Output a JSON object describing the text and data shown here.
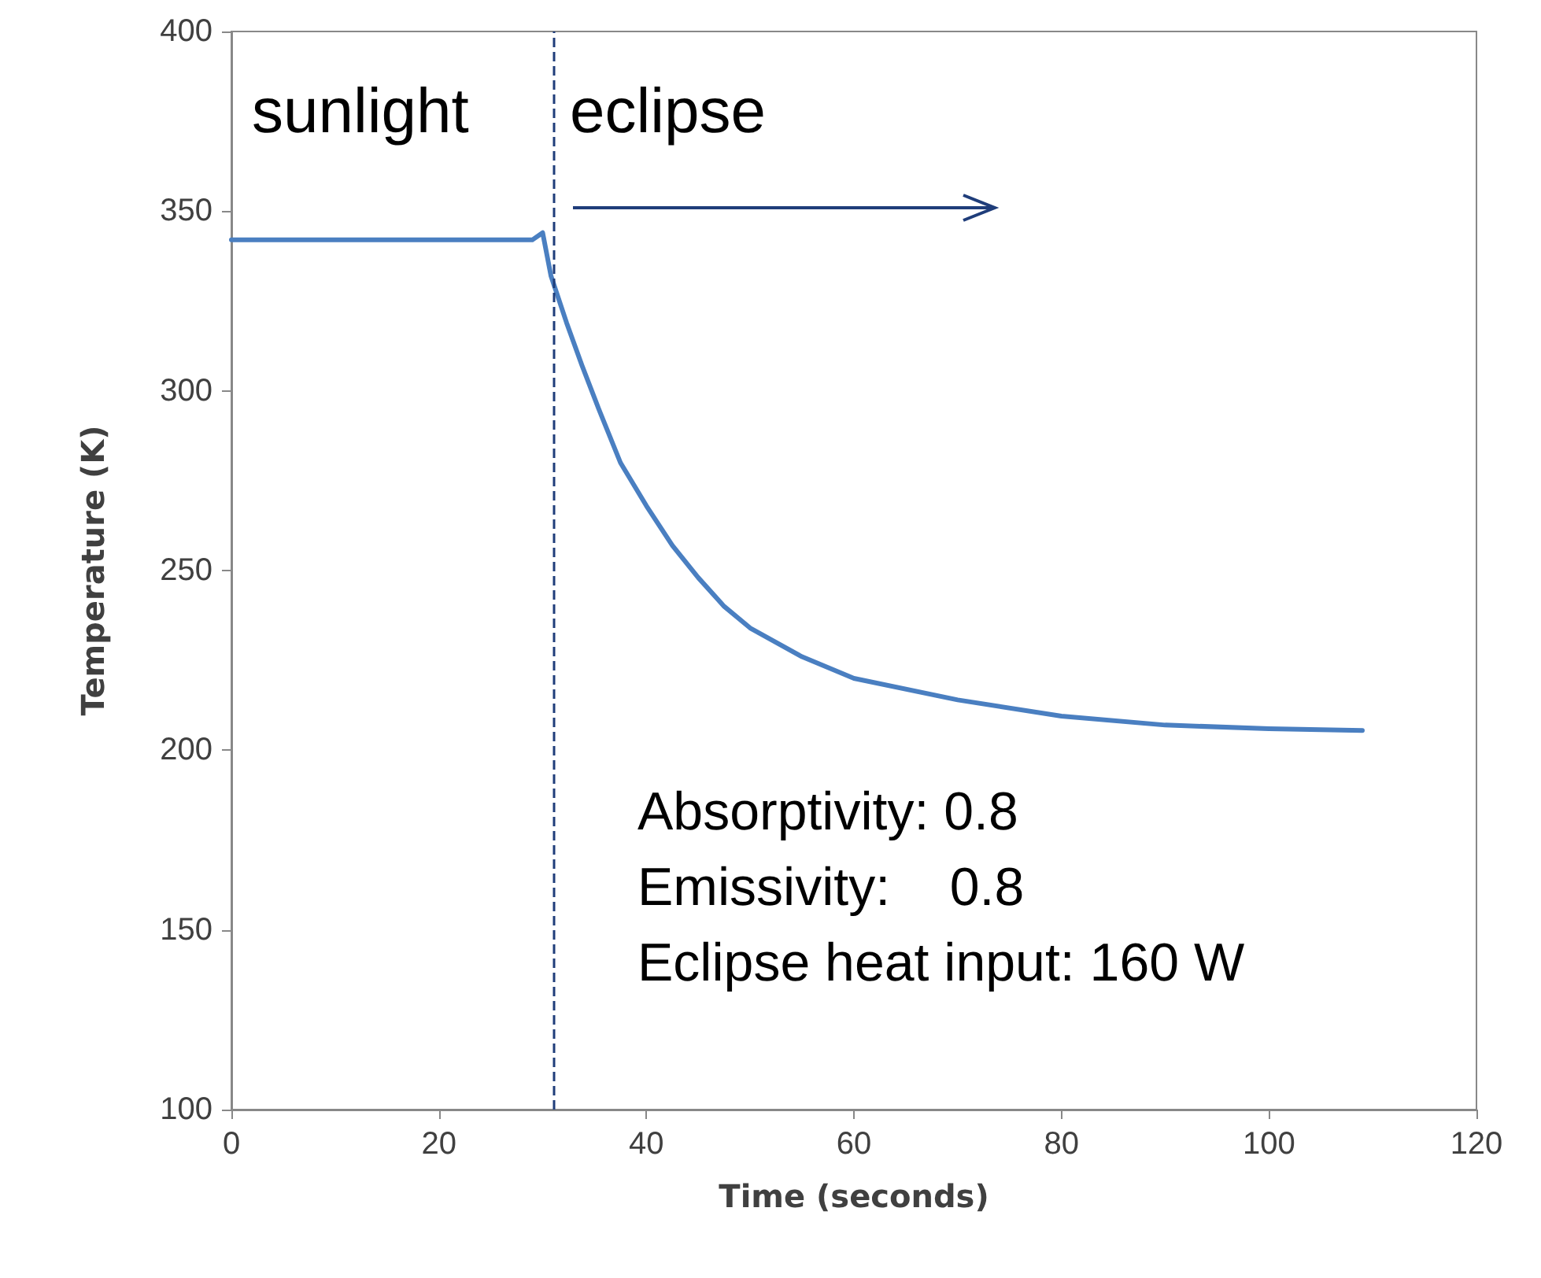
{
  "chart_data": {
    "type": "line",
    "xlabel": "Time (seconds)",
    "ylabel": "Temperature (K)",
    "xlim": [
      0,
      120
    ],
    "xticks": [
      0,
      20,
      40,
      60,
      80,
      100,
      120
    ],
    "ylim": [
      100,
      400
    ],
    "yticks": [
      100,
      150,
      200,
      250,
      300,
      350,
      400
    ],
    "grid": false,
    "marker": "none",
    "line_style": "solid",
    "series": [
      {
        "color": "#4a7fc1",
        "x": [
          0,
          10,
          20,
          29,
          30,
          30.8,
          32.3,
          33.8,
          35.4,
          37.5,
          40,
          42.5,
          45,
          47.5,
          50,
          55,
          60,
          70,
          80,
          90,
          100,
          109
        ],
        "values": [
          342,
          342,
          342,
          342,
          344,
          332,
          319,
          307,
          295,
          280,
          268,
          257,
          248,
          240,
          234,
          226,
          220,
          214,
          209.5,
          207,
          206,
          205.5
        ]
      }
    ],
    "ref_lines": [
      {
        "axis": "x",
        "value": 31,
        "color": "#1f3d7a",
        "line_style": "dashed"
      }
    ],
    "annotations": [
      "sunlight",
      "eclipse",
      "Absorptivity: 0.8",
      "Emissivity:    0.8",
      "Eclipse heat input: 160 W"
    ]
  }
}
